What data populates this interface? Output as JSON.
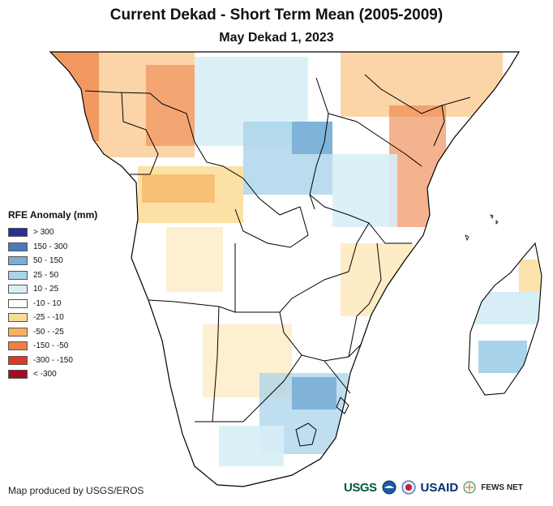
{
  "header": {
    "title": "Current Dekad - Short Term Mean (2005-2009)",
    "subtitle": "May Dekad 1, 2023"
  },
  "legend": {
    "title": "RFE Anomaly (mm)",
    "items": [
      {
        "label": "> 300",
        "color": "#2b2f8f"
      },
      {
        "label": "150 - 300",
        "color": "#4a78c0"
      },
      {
        "label": "50 - 150",
        "color": "#7aaed6"
      },
      {
        "label": "25 - 50",
        "color": "#a9d3ea"
      },
      {
        "label": "10 - 25",
        "color": "#d8eef7"
      },
      {
        "label": "-10 - 10",
        "color": "#ffffff"
      },
      {
        "label": "-25 - -10",
        "color": "#fbdc96"
      },
      {
        "label": "-50 - -25",
        "color": "#f7b260"
      },
      {
        "label": "-150 - -50",
        "color": "#ee7f45"
      },
      {
        "label": "-300 - -150",
        "color": "#d83a27"
      },
      {
        "label": "< -300",
        "color": "#a10d1e"
      }
    ]
  },
  "footer": {
    "credit": "Map produced by USGS/EROS",
    "logos": {
      "usgs": "USGS",
      "usaid": "USAID",
      "fews": "FEWS NET"
    }
  }
}
